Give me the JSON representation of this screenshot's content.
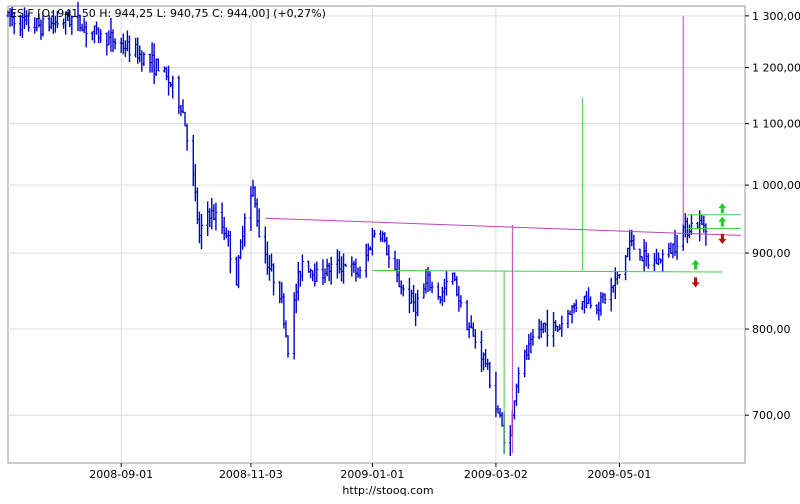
{
  "header": {
    "label": "ES.F [O: 941,50  H: 944,25  L: 940,75  C: 944,00] (+0,27%)"
  },
  "footer": {
    "source_url": "http://stooq.com"
  },
  "colors": {
    "price": "#0000cc",
    "resistance": "#bb44bb",
    "support": "#44cc44",
    "up_arrow": "#22cc22",
    "down_arrow": "#cc0000",
    "grid": "#dddddd"
  },
  "chart_data": {
    "type": "bar",
    "subtype": "ohlc-price",
    "symbol": "ES.F",
    "y_scale": "log",
    "ylim": [
      650,
      1320
    ],
    "xlim": [
      "2008-07-08",
      "2009-07-01"
    ],
    "y_ticks": [
      {
        "value": 700,
        "label": "700,00"
      },
      {
        "value": 800,
        "label": "800,00"
      },
      {
        "value": 900,
        "label": "900,00"
      },
      {
        "value": 1000,
        "label": "1 000,00"
      },
      {
        "value": 1100,
        "label": "1 100,00"
      },
      {
        "value": 1200,
        "label": "1 200,00"
      },
      {
        "value": 1300,
        "label": "1 300,00"
      }
    ],
    "x_ticks": [
      {
        "date": "2008-09-01",
        "label": "2008-09-01"
      },
      {
        "date": "2008-11-03",
        "label": "2008-11-03"
      },
      {
        "date": "2009-01-01",
        "label": "2009-01-01"
      },
      {
        "date": "2009-03-02",
        "label": "2009-03-02"
      },
      {
        "date": "2009-05-01",
        "label": "2009-05-01"
      }
    ],
    "grid": true,
    "price_path": [
      [
        "2008-07-08",
        1300
      ],
      [
        "2008-07-15",
        1285
      ],
      [
        "2008-07-25",
        1280
      ],
      [
        "2008-08-01",
        1288
      ],
      [
        "2008-08-08",
        1295
      ],
      [
        "2008-08-15",
        1275
      ],
      [
        "2008-08-22",
        1260
      ],
      [
        "2008-08-29",
        1250
      ],
      [
        "2008-09-05",
        1235
      ],
      [
        "2008-09-12",
        1220
      ],
      [
        "2008-09-19",
        1200
      ],
      [
        "2008-09-26",
        1165
      ],
      [
        "2008-10-01",
        1120
      ],
      [
        "2008-10-03",
        1080
      ],
      [
        "2008-10-06",
        1010
      ],
      [
        "2008-10-09",
        920
      ],
      [
        "2008-10-13",
        960
      ],
      [
        "2008-10-17",
        950
      ],
      [
        "2008-10-22",
        930
      ],
      [
        "2008-10-27",
        860
      ],
      [
        "2008-10-31",
        960
      ],
      [
        "2008-11-04",
        990
      ],
      [
        "2008-11-07",
        930
      ],
      [
        "2008-11-12",
        880
      ],
      [
        "2008-11-17",
        850
      ],
      [
        "2008-11-21",
        775
      ],
      [
        "2008-11-25",
        850
      ],
      [
        "2008-11-28",
        890
      ],
      [
        "2008-12-05",
        870
      ],
      [
        "2008-12-12",
        880
      ],
      [
        "2008-12-19",
        885
      ],
      [
        "2008-12-26",
        870
      ],
      [
        "2009-01-02",
        930
      ],
      [
        "2009-01-06",
        925
      ],
      [
        "2009-01-10",
        880
      ],
      [
        "2009-01-16",
        850
      ],
      [
        "2009-01-22",
        830
      ],
      [
        "2009-01-28",
        860
      ],
      [
        "2009-02-03",
        840
      ],
      [
        "2009-02-09",
        870
      ],
      [
        "2009-02-13",
        830
      ],
      [
        "2009-02-19",
        790
      ],
      [
        "2009-02-25",
        760
      ],
      [
        "2009-03-02",
        710
      ],
      [
        "2009-03-06",
        680
      ],
      [
        "2009-03-09",
        675
      ],
      [
        "2009-03-11",
        720
      ],
      [
        "2009-03-13",
        750
      ],
      [
        "2009-03-19",
        780
      ],
      [
        "2009-03-25",
        805
      ],
      [
        "2009-04-01",
        800
      ],
      [
        "2009-04-06",
        820
      ],
      [
        "2009-04-13",
        840
      ],
      [
        "2009-04-20",
        830
      ],
      [
        "2009-04-27",
        850
      ],
      [
        "2009-05-01",
        870
      ],
      [
        "2009-05-06",
        915
      ],
      [
        "2009-05-11",
        900
      ],
      [
        "2009-05-15",
        885
      ],
      [
        "2009-05-20",
        890
      ],
      [
        "2009-05-26",
        905
      ],
      [
        "2009-06-01",
        935
      ],
      [
        "2009-06-05",
        940
      ],
      [
        "2009-06-10",
        940
      ],
      [
        "2009-06-12",
        944
      ]
    ],
    "series": [
      {
        "line": "resistance",
        "from": [
          "2008-11-10",
          950
        ],
        "to": [
          "2009-06-29",
          925
        ]
      },
      {
        "line": "support",
        "from": [
          "2009-01-01",
          876
        ],
        "to": [
          "2009-06-20",
          874
        ]
      },
      {
        "line": "support",
        "from": [
          "2009-06-03",
          955
        ],
        "to": [
          "2009-06-29",
          955
        ]
      },
      {
        "line": "support",
        "from": [
          "2009-06-03",
          935
        ],
        "to": [
          "2009-06-29",
          935
        ]
      }
    ],
    "verticals": [
      {
        "kind": "support",
        "date": "2009-03-06",
        "from": 876,
        "to": 660
      },
      {
        "kind": "resistance",
        "date": "2009-03-10",
        "from": 940,
        "to": 660
      },
      {
        "kind": "support",
        "date": "2009-04-13",
        "from": 876,
        "to": 1145
      },
      {
        "kind": "resistance",
        "date": "2009-06-01",
        "from": 940,
        "to": 1300
      }
    ],
    "arrows": [
      {
        "dir": "up",
        "date": "2009-06-20",
        "value": 965
      },
      {
        "dir": "up",
        "date": "2009-06-20",
        "value": 945
      },
      {
        "dir": "down",
        "date": "2009-06-20",
        "value": 920
      },
      {
        "dir": "up",
        "date": "2009-06-07",
        "value": 884
      },
      {
        "dir": "down",
        "date": "2009-06-07",
        "value": 860
      }
    ]
  }
}
